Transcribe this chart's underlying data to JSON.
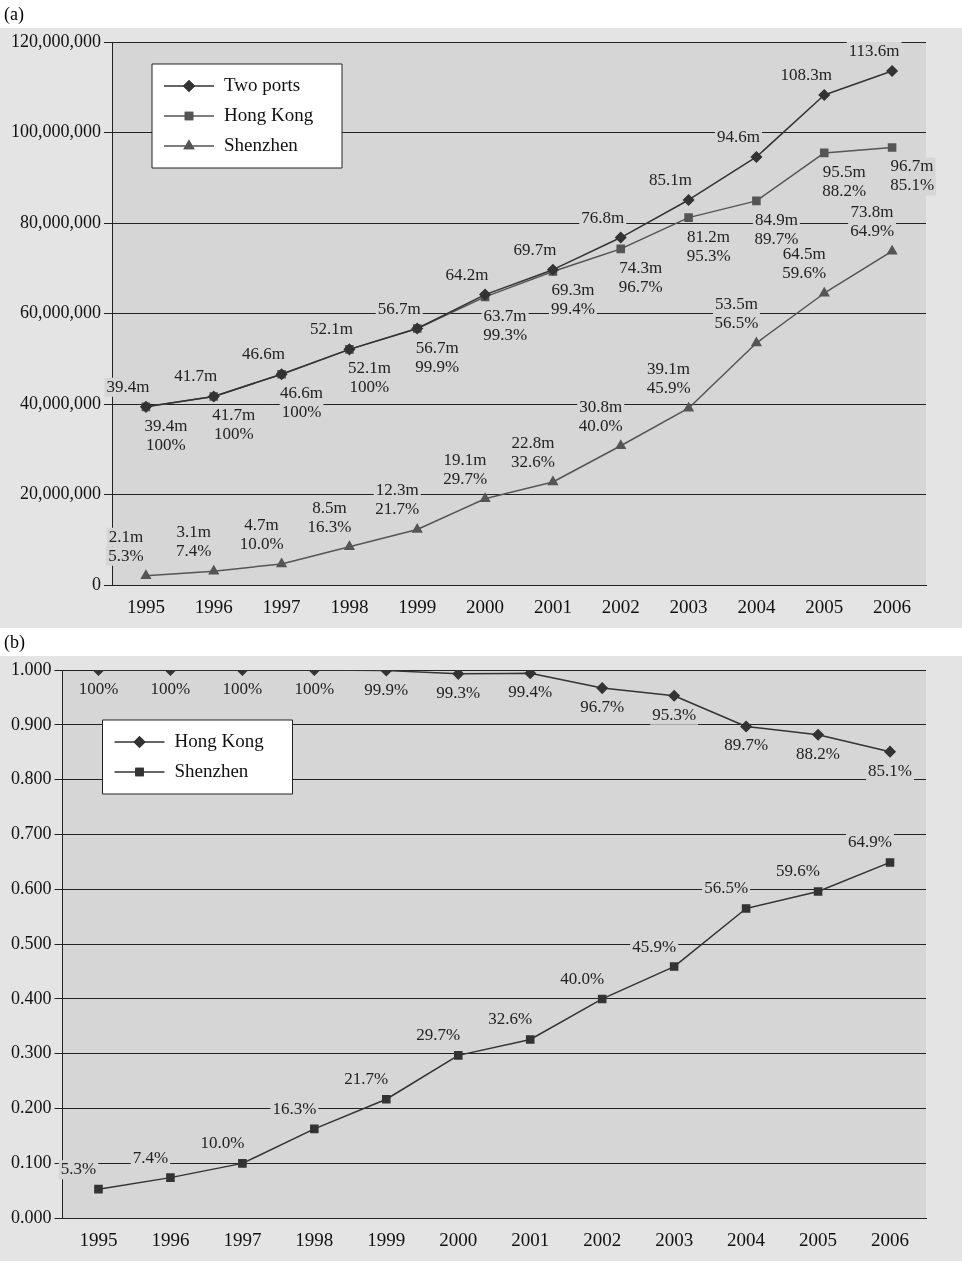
{
  "chart_data": [
    {
      "type": "line",
      "title": "(a)",
      "categories": [
        "1995",
        "1996",
        "1997",
        "1998",
        "1999",
        "2000",
        "2001",
        "2002",
        "2003",
        "2004",
        "2005",
        "2006"
      ],
      "series": [
        {
          "name": "Two ports",
          "color": "#333333",
          "marker": "diamond",
          "values": [
            39400000,
            41700000,
            46600000,
            52100000,
            56700000,
            64200000,
            69700000,
            76800000,
            85100000,
            94600000,
            108300000,
            113600000
          ],
          "value_labels": [
            "39.4m",
            "41.7m",
            "46.6m",
            "52.1m",
            "56.7m",
            "64.2m",
            "69.7m",
            "76.8m",
            "85.1m",
            "94.6m",
            "108.3m",
            "113.6m"
          ]
        },
        {
          "name": "Hong Kong",
          "color": "#555555",
          "marker": "square",
          "values": [
            39400000,
            41700000,
            46600000,
            52100000,
            56700000,
            63700000,
            69300000,
            74300000,
            81200000,
            84900000,
            95500000,
            96700000
          ],
          "value_labels": [
            "39.4m\n100%",
            "41.7m\n100%",
            "46.6m\n100%",
            "52.1m\n100%",
            "56.7m\n99.9%",
            "63.7m\n99.3%",
            "69.3m\n99.4%",
            "74.3m\n96.7%",
            "81.2m\n95.3%",
            "84.9m\n89.7%",
            "95.5m\n88.2%",
            "96.7m\n85.1%"
          ]
        },
        {
          "name": "Shenzhen",
          "color": "#555555",
          "marker": "triangle",
          "values": [
            2100000,
            3100000,
            4700000,
            8500000,
            12300000,
            19100000,
            22800000,
            30800000,
            39100000,
            53500000,
            64500000,
            73800000
          ],
          "value_labels": [
            "2.1m\n5.3%",
            "3.1m\n7.4%",
            "4.7m\n10.0%",
            "8.5m\n16.3%",
            "12.3m\n21.7%",
            "19.1m\n29.7%",
            "22.8m\n32.6%",
            "30.8m\n40.0%",
            "39.1m\n45.9%",
            "53.5m\n56.5%",
            "64.5m\n59.6%",
            "73.8m\n64.9%"
          ]
        }
      ],
      "ylim": [
        0,
        120000000
      ],
      "yticks": [
        {
          "value": 0,
          "label": "0"
        },
        {
          "value": 20000000,
          "label": "20,000,000"
        },
        {
          "value": 40000000,
          "label": "40,000,000"
        },
        {
          "value": 60000000,
          "label": "60,000,000"
        },
        {
          "value": 80000000,
          "label": "80,000,000"
        },
        {
          "value": 100000000,
          "label": "100,000,000"
        },
        {
          "value": 120000000,
          "label": "120,000,000"
        }
      ],
      "grid": "y",
      "legend": "top left"
    },
    {
      "type": "line",
      "title": "(b)",
      "categories": [
        "1995",
        "1996",
        "1997",
        "1998",
        "1999",
        "2000",
        "2001",
        "2002",
        "2003",
        "2004",
        "2005",
        "2006"
      ],
      "series": [
        {
          "name": "Hong Kong",
          "color": "#333333",
          "marker": "diamond",
          "values": [
            1.0,
            1.0,
            1.0,
            1.0,
            0.999,
            0.993,
            0.994,
            0.967,
            0.953,
            0.897,
            0.882,
            0.851
          ],
          "value_labels": [
            "100%",
            "100%",
            "100%",
            "100%",
            "99.9%",
            "99.3%",
            "99.4%",
            "96.7%",
            "95.3%",
            "89.7%",
            "88.2%",
            "85.1%"
          ]
        },
        {
          "name": "Shenzhen",
          "color": "#333333",
          "marker": "square",
          "values": [
            0.053,
            0.074,
            0.1,
            0.163,
            0.217,
            0.297,
            0.326,
            0.4,
            0.459,
            0.565,
            0.596,
            0.649
          ],
          "value_labels": [
            "5.3%",
            "7.4%",
            "10.0%",
            "16.3%",
            "21.7%",
            "29.7%",
            "32.6%",
            "40.0%",
            "45.9%",
            "56.5%",
            "59.6%",
            "64.9%"
          ]
        }
      ],
      "ylim": [
        0,
        1
      ],
      "yticks": [
        {
          "value": 0,
          "label": "0.000"
        },
        {
          "value": 0.1,
          "label": "0.100"
        },
        {
          "value": 0.2,
          "label": "0.200"
        },
        {
          "value": 0.3,
          "label": "0.300"
        },
        {
          "value": 0.4,
          "label": "0.400"
        },
        {
          "value": 0.5,
          "label": "0.500"
        },
        {
          "value": 0.6,
          "label": "0.600"
        },
        {
          "value": 0.7,
          "label": "0.700"
        },
        {
          "value": 0.8,
          "label": "0.800"
        },
        {
          "value": 0.9,
          "label": "0.900"
        },
        {
          "value": 1,
          "label": "1.000"
        }
      ],
      "grid": "y",
      "legend": "top left"
    }
  ]
}
